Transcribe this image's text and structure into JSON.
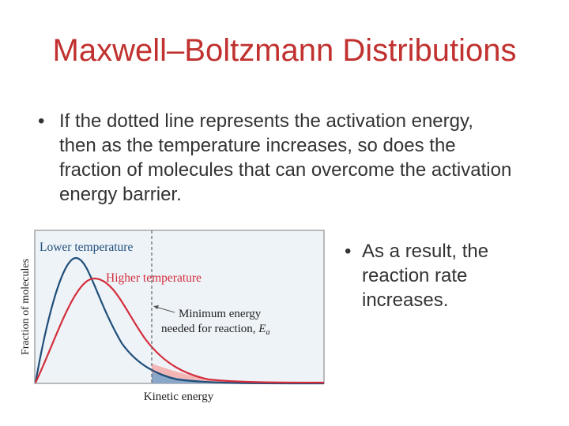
{
  "slide": {
    "title": "Maxwell–Boltzmann Distributions",
    "bullet_char": "•",
    "bullet1": "If the dotted line represents the activation energy, then as the temperature increases, so does the fraction of molecules that can overcome the activation energy barrier.",
    "bullet2": "As a result, the reaction rate increases."
  },
  "figure": {
    "ylabel": "Fraction of molecules",
    "xlabel": "Kinetic energy",
    "lower_label": "Lower temperature",
    "higher_label": "Higher temperature",
    "annotation_line1": "Minimum energy",
    "annotation_line2": "needed for reaction, ",
    "annotation_symbol": "E",
    "annotation_subscript": "a",
    "colors": {
      "lower": "#1f4e79",
      "higher": "#d42e3c",
      "plot_bg": "#eef3f8",
      "lower_fill": "#8aa6c8",
      "higher_fill": "#f3b6b6"
    }
  }
}
